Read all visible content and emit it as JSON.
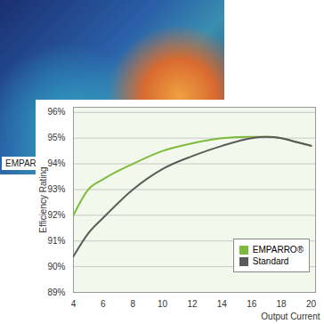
{
  "chart_data": {
    "type": "line",
    "image_label": "EMPARRO®",
    "x_label": "Output Current",
    "y_label": "Efficiency Rating",
    "x": [
      4,
      5,
      6,
      8,
      10,
      12,
      14,
      16,
      17,
      18,
      19,
      20
    ],
    "series": [
      {
        "name": "EMPARRO®",
        "color": "#7dbb3c",
        "values": [
          92.0,
          93.0,
          93.4,
          94.0,
          94.5,
          94.8,
          95.0,
          95.05,
          95.05,
          95.0,
          94.85,
          94.7
        ]
      },
      {
        "name": "Standard",
        "color": "#5a5a5a",
        "values": [
          90.4,
          91.3,
          91.9,
          93.0,
          93.8,
          94.3,
          94.7,
          95.0,
          95.05,
          95.0,
          94.85,
          94.7
        ]
      }
    ],
    "xlim": [
      4,
      20.3
    ],
    "xticks": [
      4,
      6,
      8,
      10,
      12,
      14,
      16,
      18,
      20
    ],
    "ylim": [
      89,
      96.2
    ],
    "yticks": [
      {
        "value": 89,
        "label": "89%"
      },
      {
        "value": 90,
        "label": "90%"
      },
      {
        "value": 91,
        "label": "91%"
      },
      {
        "value": 92,
        "label": "92%"
      },
      {
        "value": 93,
        "label": "93%"
      },
      {
        "value": 94,
        "label": "94%"
      },
      {
        "value": 95,
        "label": "95%"
      },
      {
        "value": 96,
        "label": "96%"
      }
    ],
    "grid": true,
    "legend": "lower right"
  }
}
